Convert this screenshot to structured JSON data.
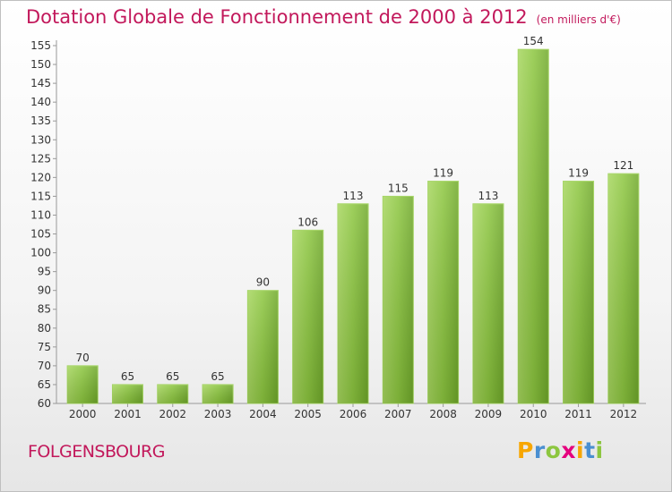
{
  "header": {
    "title": "Dotation Globale de Fonctionnement de 2000 à 2012",
    "subtitle": "(en milliers d'€)"
  },
  "footer": {
    "commune": "FOLGENSBOURG",
    "brand_letters": [
      "P",
      "r",
      "o",
      "x",
      "i",
      "t",
      "i"
    ],
    "brand_colors": [
      "#f7a600",
      "#4a8fd1",
      "#8cc63f",
      "#e5007e",
      "#f7a600",
      "#4a8fd1",
      "#8cc63f"
    ]
  },
  "chart_data": {
    "type": "bar",
    "title": "Dotation Globale de Fonctionnement de 2000 à 2012",
    "subtitle": "(en milliers d'€)",
    "categories": [
      "2000",
      "2001",
      "2002",
      "2003",
      "2004",
      "2005",
      "2006",
      "2007",
      "2008",
      "2009",
      "2010",
      "2011",
      "2012"
    ],
    "values": [
      70,
      65,
      65,
      65,
      90,
      106,
      113,
      115,
      119,
      113,
      154,
      119,
      121
    ],
    "ylim": [
      60,
      155
    ],
    "yticks": [
      60,
      65,
      70,
      75,
      80,
      85,
      90,
      95,
      100,
      105,
      110,
      115,
      120,
      125,
      130,
      135,
      140,
      145,
      150,
      155
    ],
    "data_labels": true,
    "grid": false,
    "bar_color": "#8cc63f",
    "accent_color": "#c2185b"
  }
}
